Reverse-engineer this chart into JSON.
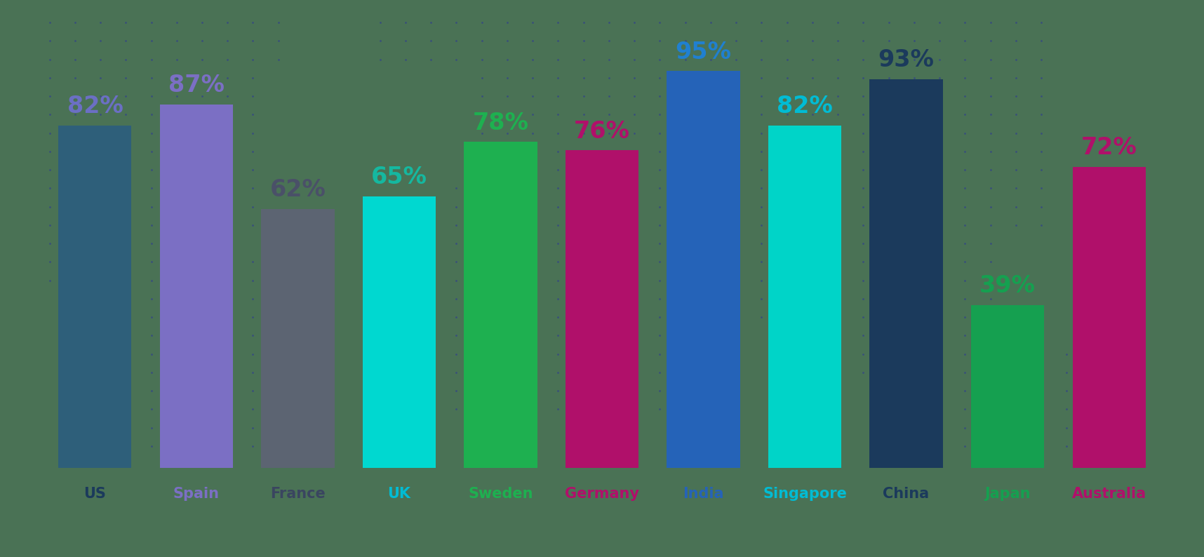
{
  "categories": [
    "US",
    "Spain",
    "France",
    "UK",
    "Sweden",
    "Germany",
    "India",
    "Singapore",
    "China",
    "Japan",
    "Australia"
  ],
  "values": [
    82,
    87,
    62,
    65,
    78,
    76,
    95,
    82,
    93,
    39,
    72
  ],
  "bar_colors": [
    "#2e5f7a",
    "#7b6fc4",
    "#5c6472",
    "#00d8d0",
    "#1eb050",
    "#b0106a",
    "#2563b8",
    "#00d4c8",
    "#1b3a5c",
    "#15a050",
    "#b0106a"
  ],
  "label_colors": [
    "#6b6fc4",
    "#7b6fc4",
    "#4a5068",
    "#15b8a0",
    "#1eb050",
    "#b0106a",
    "#2080d0",
    "#00bcd4",
    "#1b3a5c",
    "#15a050",
    "#b0106a"
  ],
  "xlabel_colors": [
    "#1b3a5c",
    "#7b6fc4",
    "#3a4560",
    "#00bcd4",
    "#1eb050",
    "#b0106a",
    "#2563b8",
    "#00bcd4",
    "#1b3a5c",
    "#15a050",
    "#b0106a"
  ],
  "background_color": "#4a7255",
  "dot_color": "#334488",
  "figsize": [
    17.16,
    7.94
  ],
  "dpi": 100,
  "bar_width": 0.72
}
